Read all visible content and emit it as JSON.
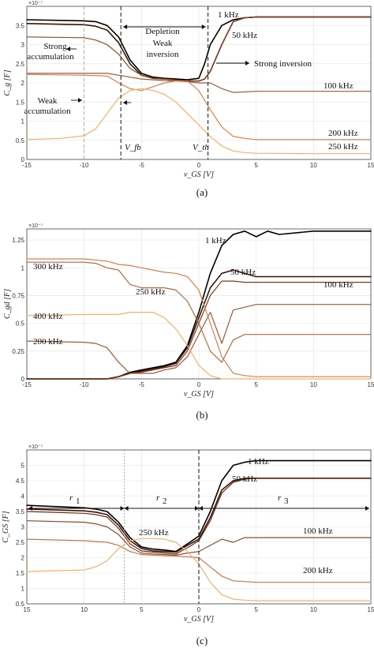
{
  "chart_data": [
    {
      "type": "line",
      "caption": "(a)",
      "xlabel": "v_GS [V]",
      "ylabel": "C_g [F]",
      "yexponent": "×10⁻⁷",
      "xlim": [
        -15,
        15
      ],
      "ylim": [
        0,
        4
      ],
      "xticks": [
        -15,
        -10,
        -5,
        0,
        5,
        10,
        15
      ],
      "yticks": [
        0,
        0.5,
        1,
        1.5,
        2,
        2.5,
        3,
        3.5
      ],
      "xtick_labels": [
        "-15",
        "-10",
        "-5",
        "0",
        "5",
        "10",
        "15"
      ],
      "ytick_labels": [
        "0",
        "0.5",
        "1",
        "1.5",
        "2",
        "2.5",
        "3",
        "3.5"
      ],
      "grid": true,
      "series": [
        {
          "name": "1 kHz",
          "color": "#000000",
          "x": [
            -15,
            -10,
            -9,
            -8,
            -7,
            -6,
            -5,
            -4,
            -3,
            -2,
            -1,
            0,
            0.5,
            1,
            2,
            3,
            4,
            5,
            10,
            15
          ],
          "values": [
            3.65,
            3.62,
            3.6,
            3.5,
            3.2,
            2.6,
            2.25,
            2.15,
            2.12,
            2.1,
            2.08,
            2.12,
            2.5,
            3.0,
            3.5,
            3.65,
            3.7,
            3.72,
            3.72,
            3.72
          ]
        },
        {
          "name": "50 kHz",
          "color": "#3a1608",
          "x": [
            -15,
            -10,
            -9,
            -8,
            -7,
            -6,
            -5,
            -4,
            -3,
            -2,
            -1,
            0,
            0.5,
            1,
            2,
            3,
            4,
            5,
            10,
            15
          ],
          "values": [
            3.55,
            3.52,
            3.48,
            3.38,
            3.05,
            2.5,
            2.2,
            2.12,
            2.1,
            2.08,
            2.05,
            2.05,
            2.1,
            2.3,
            3.0,
            3.6,
            3.7,
            3.72,
            3.72,
            3.72
          ]
        },
        {
          "name": "",
          "color": "#8a4a2a",
          "x": [
            -15,
            -10,
            -9,
            -8,
            -7,
            -6,
            -5,
            -4,
            -3,
            -2,
            -1,
            0,
            0.5,
            1,
            2,
            3,
            4,
            5,
            10,
            15
          ],
          "values": [
            3.2,
            3.18,
            3.12,
            3.0,
            2.75,
            2.38,
            2.2,
            2.12,
            2.1,
            2.07,
            2.05,
            2.05,
            2.1,
            2.3,
            3.0,
            3.6,
            3.7,
            3.72,
            3.72,
            3.72
          ]
        },
        {
          "name": "100 kHz",
          "color": "#9a5a3a",
          "x": [
            -15,
            -10,
            -8,
            -7,
            -6,
            -5,
            -4,
            -3,
            -2,
            -1,
            0,
            1,
            2,
            3,
            5,
            10,
            15
          ],
          "values": [
            2.25,
            2.25,
            2.25,
            2.2,
            2.15,
            2.1,
            2.08,
            2.06,
            2.05,
            2.03,
            2.0,
            2.0,
            1.85,
            1.75,
            1.78,
            1.78,
            1.78
          ]
        },
        {
          "name": "200 kHz",
          "color": "#cf8250",
          "x": [
            -15,
            -10,
            -8,
            -7,
            -6,
            -5,
            -4,
            -3,
            -2,
            -1,
            0,
            1,
            2,
            3,
            4,
            5,
            10,
            15
          ],
          "values": [
            2.22,
            2.2,
            2.18,
            2.0,
            1.85,
            1.8,
            1.9,
            2.0,
            2.05,
            2.05,
            1.8,
            1.3,
            0.85,
            0.6,
            0.55,
            0.52,
            0.52,
            0.52
          ]
        },
        {
          "name": "250 kHz",
          "color": "#f0b070",
          "x": [
            -15,
            -12,
            -10,
            -9,
            -8,
            -7,
            -6,
            -5,
            -4,
            -3,
            -2,
            -1,
            0,
            1,
            2,
            3,
            4,
            5,
            10,
            15
          ],
          "values": [
            0.52,
            0.55,
            0.62,
            0.8,
            1.2,
            1.6,
            1.8,
            1.85,
            1.8,
            1.7,
            1.5,
            1.2,
            0.9,
            0.6,
            0.35,
            0.22,
            0.18,
            0.16,
            0.15,
            0.15
          ]
        }
      ],
      "annotations": {
        "depletion": "Depletion",
        "weak_inversion_1": "Weak",
        "weak_inversion_2": "inversion",
        "strong_acc_1": "Strong",
        "strong_acc_2": "accumulation",
        "weak_acc_1": "Weak",
        "weak_acc_2": "accumulation",
        "strong_inversion": "Strong inversion",
        "vfb": "V_fb",
        "vth": "V_th"
      }
    },
    {
      "type": "line",
      "caption": "(b)",
      "xlabel": "v_GS [V]",
      "ylabel": "C_gd [F]",
      "yexponent": "×10⁻⁷",
      "xlim": [
        -15,
        15
      ],
      "ylim": [
        0,
        1.35
      ],
      "xticks": [
        -15,
        -10,
        -5,
        0,
        5,
        10,
        15
      ],
      "yticks": [
        0,
        0.25,
        0.5,
        0.75,
        1,
        1.25
      ],
      "xtick_labels": [
        "-15",
        "-10",
        "-5",
        "0",
        "5",
        "10",
        "15"
      ],
      "ytick_labels": [
        "0",
        "0.25",
        "0.5",
        "0.75",
        "1",
        "1.25"
      ],
      "grid": true,
      "series": [
        {
          "name": "1 kHz",
          "color": "#000000",
          "x": [
            -15,
            -10,
            -8,
            -7,
            -6,
            -5,
            -4,
            -3,
            -2,
            -1,
            0,
            1,
            2,
            3,
            4,
            5,
            6,
            7,
            10,
            15
          ],
          "values": [
            0,
            0,
            0,
            0.02,
            0.06,
            0.08,
            0.1,
            0.12,
            0.15,
            0.3,
            0.6,
            0.95,
            1.2,
            1.3,
            1.33,
            1.28,
            1.33,
            1.3,
            1.33,
            1.33
          ]
        },
        {
          "name": "50 kHz",
          "color": "#3a1608",
          "x": [
            -15,
            -10,
            -8,
            -7,
            -6,
            -5,
            -4,
            -3,
            -2,
            -1,
            0,
            1,
            2,
            3,
            4,
            5,
            10,
            15
          ],
          "values": [
            0,
            0,
            0,
            0.02,
            0.05,
            0.07,
            0.09,
            0.11,
            0.14,
            0.28,
            0.55,
            0.82,
            0.95,
            0.98,
            0.95,
            0.92,
            0.92,
            0.92
          ]
        },
        {
          "name": "100 kHz",
          "color": "#7a3a1a",
          "x": [
            -15,
            -10,
            -8,
            -7,
            -6,
            -5,
            -4,
            -3,
            -2,
            -1,
            0,
            1,
            2,
            3,
            4,
            5,
            10,
            15
          ],
          "values": [
            0,
            0,
            0,
            0.02,
            0.05,
            0.06,
            0.08,
            0.1,
            0.12,
            0.25,
            0.5,
            0.75,
            0.88,
            0.88,
            0.87,
            0.87,
            0.87,
            0.87
          ]
        },
        {
          "name": "200 kHz",
          "color": "#9a5a3a",
          "x": [
            -15,
            -10,
            -9,
            -8,
            -7,
            -6,
            -5,
            -4,
            -3,
            -2,
            -1,
            0,
            1,
            2,
            3,
            5,
            10,
            15
          ],
          "values": [
            0.34,
            0.33,
            0.32,
            0.28,
            0.15,
            0.05,
            0.05,
            0.05,
            0.08,
            0.1,
            0.2,
            0.4,
            0.6,
            0.32,
            0.62,
            0.67,
            0.67,
            0.67
          ]
        },
        {
          "name": "250 kHz",
          "color": "#b06a40",
          "x": [
            -15,
            -10,
            -9,
            -8,
            -7,
            -6,
            -5,
            -4,
            -3,
            -2,
            -1,
            0,
            1,
            2,
            3,
            4,
            5,
            10,
            15
          ],
          "values": [
            1.05,
            1.05,
            1.04,
            1.0,
            0.98,
            0.85,
            0.82,
            0.82,
            0.82,
            0.8,
            0.7,
            0.5,
            0.25,
            0.15,
            0.35,
            0.4,
            0.4,
            0.4,
            0.4
          ]
        },
        {
          "name": "300 kHz",
          "color": "#d08050",
          "x": [
            -15,
            -10,
            -8,
            -7,
            -6,
            -5,
            -4,
            -3,
            -2,
            -1,
            0,
            1,
            2,
            3,
            4,
            5,
            10,
            15
          ],
          "values": [
            1.08,
            1.08,
            1.06,
            1.03,
            1.02,
            1.0,
            0.98,
            0.96,
            0.95,
            0.92,
            0.8,
            0.5,
            0.2,
            0.05,
            0.03,
            0.02,
            0.02,
            0.02
          ]
        },
        {
          "name": "400 kHz",
          "color": "#f0b070",
          "x": [
            -15,
            -10,
            -7,
            -6,
            -5,
            -4,
            -3,
            -2,
            -1,
            0,
            1,
            2,
            3,
            5,
            10,
            15
          ],
          "values": [
            0.57,
            0.58,
            0.58,
            0.6,
            0.6,
            0.6,
            0.55,
            0.45,
            0.3,
            0.12,
            0.03,
            0,
            0,
            0,
            0,
            0
          ]
        }
      ]
    },
    {
      "type": "line",
      "caption": "(c)",
      "xlabel": "v_GS [V]",
      "ylabel": "C_GS [F]",
      "yexponent": "×10⁻⁷",
      "xlim": [
        15,
        -15
      ],
      "ylim": [
        0.5,
        5.5
      ],
      "xticks": [
        15,
        10,
        5,
        0,
        5,
        10,
        15
      ],
      "yticks": [
        0.5,
        1,
        1.5,
        2,
        2.5,
        3,
        3.5,
        4,
        4.5,
        5
      ],
      "xtick_labels": [
        "15",
        "10",
        "5",
        "0",
        "5",
        "10",
        "15"
      ],
      "ytick_labels": [
        "0.5",
        "1",
        "1.5",
        "2",
        "2.5",
        "3",
        "3.5",
        "4",
        "4.5",
        "5"
      ],
      "grid": true,
      "series": [
        {
          "name": "1 kHz",
          "color": "#000000",
          "x": [
            -15,
            -10,
            -9,
            -8,
            -7,
            -6,
            -5,
            -4,
            -3,
            -2,
            -1,
            0,
            1,
            2,
            3,
            4,
            5,
            10,
            15
          ],
          "values": [
            3.7,
            3.62,
            3.58,
            3.5,
            3.15,
            2.65,
            2.35,
            2.28,
            2.25,
            2.2,
            2.45,
            2.7,
            3.5,
            4.5,
            5.0,
            5.1,
            5.15,
            5.15,
            5.15
          ]
        },
        {
          "name": "50 kHz",
          "color": "#3a1608",
          "x": [
            -15,
            -10,
            -9,
            -8,
            -7,
            -6,
            -5,
            -4,
            -3,
            -2,
            -1,
            0,
            1,
            2,
            3,
            4,
            5,
            10,
            15
          ],
          "values": [
            3.58,
            3.52,
            3.48,
            3.4,
            3.05,
            2.55,
            2.3,
            2.22,
            2.2,
            2.18,
            2.4,
            2.6,
            3.3,
            4.2,
            4.5,
            4.58,
            4.58,
            4.58,
            4.58
          ]
        },
        {
          "name": "",
          "color": "#6a2a12",
          "x": [
            -15,
            -10,
            -9,
            -8,
            -7,
            -6,
            -5,
            -4,
            -3,
            -2,
            -1,
            0,
            1,
            2,
            3,
            4,
            5,
            10,
            15
          ],
          "values": [
            3.5,
            3.44,
            3.4,
            3.32,
            2.95,
            2.45,
            2.22,
            2.18,
            2.15,
            2.12,
            2.32,
            2.55,
            3.2,
            4.1,
            4.45,
            4.55,
            4.58,
            4.58,
            4.58
          ]
        },
        {
          "name": "100 kHz",
          "color": "#8a4a2a",
          "x": [
            -15,
            -10,
            -9,
            -8,
            -7,
            -6,
            -5,
            -4,
            -3,
            -2,
            -1,
            0,
            1,
            2,
            3,
            4,
            5,
            10,
            15
          ],
          "values": [
            3.2,
            3.15,
            3.1,
            3.0,
            2.75,
            2.35,
            2.15,
            2.12,
            2.1,
            2.08,
            2.15,
            2.2,
            2.4,
            2.6,
            2.5,
            2.65,
            2.65,
            2.65,
            2.65
          ]
        },
        {
          "name": "200 kHz",
          "color": "#c07848",
          "x": [
            -15,
            -10,
            -8,
            -7,
            -6,
            -5,
            -4,
            -3,
            -2,
            -1,
            0,
            1,
            2,
            3,
            5,
            10,
            15
          ],
          "values": [
            2.6,
            2.55,
            2.5,
            2.4,
            2.2,
            2.1,
            2.08,
            2.06,
            2.05,
            2.03,
            2.0,
            1.7,
            1.4,
            1.25,
            1.2,
            1.2,
            1.2
          ]
        },
        {
          "name": "250 kHz",
          "color": "#f0b070",
          "x": [
            -15,
            -12,
            -10,
            -9,
            -8,
            -7,
            -6,
            -5,
            -4,
            -3,
            -2,
            -1,
            0,
            1,
            2,
            3,
            4,
            5,
            10,
            15
          ],
          "values": [
            1.55,
            1.58,
            1.6,
            1.7,
            1.9,
            2.3,
            2.55,
            2.62,
            2.62,
            2.6,
            2.5,
            2.2,
            1.8,
            1.2,
            0.8,
            0.65,
            0.62,
            0.6,
            0.6,
            0.6
          ]
        }
      ],
      "annotations": {
        "r1": "r",
        "r1_sub": "1",
        "r2": "r",
        "r2_sub": "2",
        "r3": "r",
        "r3_sub": "3"
      }
    }
  ]
}
